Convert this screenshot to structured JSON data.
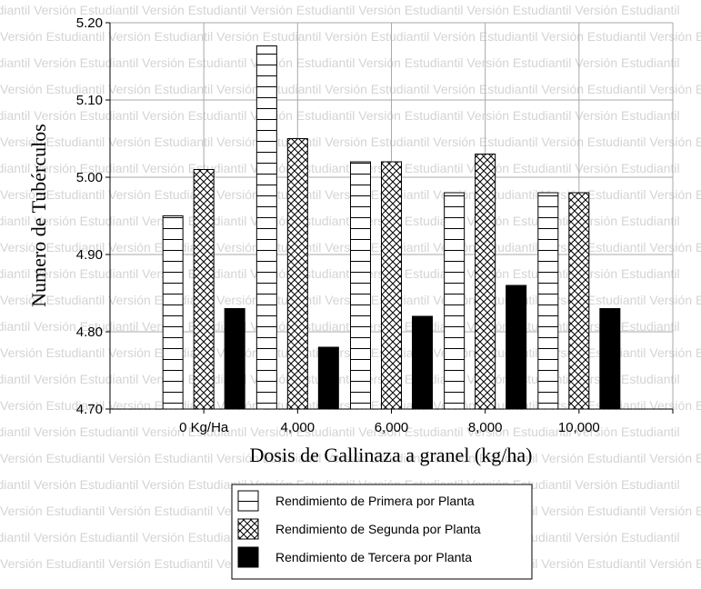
{
  "watermark_text": "Versión Estudiantil",
  "chart_data": {
    "type": "bar",
    "title": "",
    "xlabel": "Dosis de Gallinaza a granel (kg/ha)",
    "ylabel": "Numero de Tubérculos",
    "ylim": [
      4.7,
      5.2
    ],
    "yticks": [
      "4.70",
      "4.80",
      "4.90",
      "5.00",
      "5.10",
      "5.20"
    ],
    "grid": true,
    "legend_position": "bottom-center",
    "categories": [
      "0 Kg/Ha",
      "4,000",
      "6,000",
      "8,000",
      "10,000"
    ],
    "series": [
      {
        "name": "Rendimiento de Primera por Planta",
        "pattern": "horizontal-lines",
        "values": [
          4.95,
          5.17,
          5.02,
          4.98,
          4.98
        ]
      },
      {
        "name": "Rendimiento de Segunda por Planta",
        "pattern": "crosshatch",
        "values": [
          5.01,
          5.05,
          5.02,
          5.03,
          4.98
        ]
      },
      {
        "name": "Rendimiento de Tercera por Planta",
        "pattern": "solid-black",
        "values": [
          4.83,
          4.78,
          4.82,
          4.86,
          4.83
        ]
      }
    ]
  }
}
